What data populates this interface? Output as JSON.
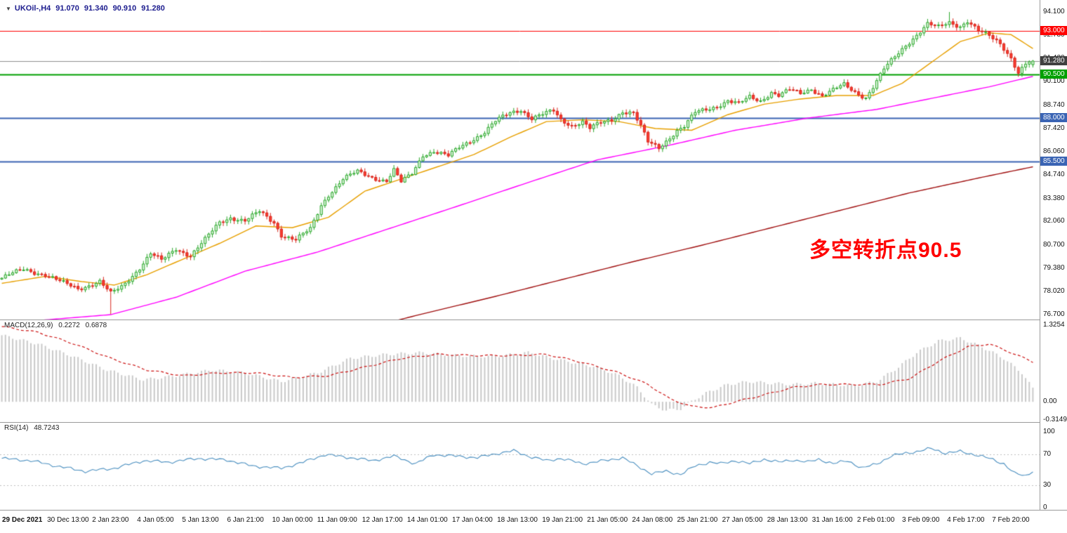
{
  "header": {
    "symbol": "UKOil-,H4",
    "open": "91.070",
    "high": "91.340",
    "low": "90.910",
    "close": "91.280"
  },
  "annotation": {
    "text": "多空转折点90.5",
    "color": "#ff0000"
  },
  "indicators": {
    "macd": {
      "label": "MACD(12,26,9)",
      "value_main": "0.2272",
      "value_signal": "0.6878"
    },
    "rsi": {
      "label": "RSI(14)",
      "value": "48.7243"
    }
  },
  "colors": {
    "up_fill": "#d9f2d9",
    "up_border": "#2aa82a",
    "down_fill": "#fa3b30",
    "down_border": "#d8281e",
    "macd_hist": "#c9c9c9",
    "macd_signal": "#cc1111",
    "rsi_line": "#4a8fc0",
    "annotation": "#ff0000",
    "axis_text": "#111111",
    "separator": "#9a9a9a",
    "symbol_text": "#1c1c8e"
  },
  "chart_data": [
    {
      "type": "candlestick",
      "title": "UKOil- H4 candlestick chart",
      "candle_count": 285,
      "ylim": [
        76.42,
        94.79
      ],
      "last_candle": {
        "open": 91.07,
        "high": 91.34,
        "low": 90.91,
        "close": 91.28
      },
      "y_axis": {
        "labels": [
          "94.100",
          "92.780",
          "91.420",
          "90.100",
          "88.740",
          "87.420",
          "86.060",
          "84.740",
          "83.380",
          "82.060",
          "80.700",
          "79.380",
          "78.020",
          "76.700"
        ]
      },
      "x_axis": {
        "labels": [
          "29 Dec 2021",
          "30 Dec 13:00",
          "2 Jan 23:00",
          "4 Jan 05:00",
          "5 Jan 13:00",
          "6 Jan 21:00",
          "10 Jan 00:00",
          "11 Jan 09:00",
          "12 Jan 17:00",
          "14 Jan 01:00",
          "17 Jan 04:00",
          "18 Jan 13:00",
          "19 Jan 21:00",
          "21 Jan 05:00",
          "24 Jan 08:00",
          "25 Jan 21:00",
          "27 Jan 05:00",
          "28 Jan 13:00",
          "31 Jan 16:00",
          "2 Feb 01:00",
          "3 Feb 09:00",
          "4 Feb 17:00",
          "7 Feb 20:00"
        ]
      },
      "horizontal_lines": [
        {
          "label": "93.000",
          "value": 93.0,
          "line_color": "#ff0000",
          "badge_color": "#ff0000",
          "width": 1
        },
        {
          "label": "91.280",
          "value": 91.28,
          "line_color": "#909090",
          "badge_color": "#404040",
          "width": 1,
          "current_price": true
        },
        {
          "label": "90.500",
          "value": 90.5,
          "line_color": "#00a000",
          "badge_color": "#00a000",
          "width": 2
        },
        {
          "label": "88.000",
          "value": 88.0,
          "line_color": "#3a64b4",
          "badge_color": "#3a64b4",
          "width": 2
        },
        {
          "label": "85.500",
          "value": 85.5,
          "line_color": "#3a64b4",
          "badge_color": "#3a64b4",
          "width": 2
        }
      ],
      "close_anchors": [
        [
          0,
          78.8
        ],
        [
          6,
          79.3
        ],
        [
          12,
          79.0
        ],
        [
          17,
          78.5
        ],
        [
          21,
          78.2
        ],
        [
          27,
          78.6
        ],
        [
          30,
          77.9
        ],
        [
          33,
          78.3
        ],
        [
          38,
          79.4
        ],
        [
          41,
          80.2
        ],
        [
          44,
          79.8
        ],
        [
          48,
          80.5
        ],
        [
          52,
          80.1
        ],
        [
          56,
          81.0
        ],
        [
          60,
          82.0
        ],
        [
          63,
          82.3
        ],
        [
          67,
          82.1
        ],
        [
          71,
          82.6
        ],
        [
          75,
          82.0
        ],
        [
          77,
          81.3
        ],
        [
          81,
          81.0
        ],
        [
          85,
          81.6
        ],
        [
          88,
          83.0
        ],
        [
          90,
          83.6
        ],
        [
          94,
          84.5
        ],
        [
          98,
          84.9
        ],
        [
          102,
          84.6
        ],
        [
          106,
          84.4
        ],
        [
          108,
          85.0
        ],
        [
          110,
          84.3
        ],
        [
          113,
          84.8
        ],
        [
          116,
          85.9
        ],
        [
          119,
          86.1
        ],
        [
          123,
          85.8
        ],
        [
          126,
          86.3
        ],
        [
          129,
          86.7
        ],
        [
          133,
          87.2
        ],
        [
          136,
          87.8
        ],
        [
          140,
          88.3
        ],
        [
          143,
          88.5
        ],
        [
          146,
          88.0
        ],
        [
          149,
          88.2
        ],
        [
          152,
          88.4
        ],
        [
          154,
          87.9
        ],
        [
          157,
          87.6
        ],
        [
          160,
          87.8
        ],
        [
          162,
          87.4
        ],
        [
          165,
          87.7
        ],
        [
          168,
          87.9
        ],
        [
          171,
          88.4
        ],
        [
          174,
          88.3
        ],
        [
          176,
          87.5
        ],
        [
          178,
          86.6
        ],
        [
          181,
          86.3
        ],
        [
          184,
          86.9
        ],
        [
          186,
          87.3
        ],
        [
          188,
          87.5
        ],
        [
          191,
          88.3
        ],
        [
          194,
          88.5
        ],
        [
          197,
          88.7
        ],
        [
          200,
          89.0
        ],
        [
          203,
          88.8
        ],
        [
          206,
          89.2
        ],
        [
          209,
          89.0
        ],
        [
          212,
          89.5
        ],
        [
          214,
          89.3
        ],
        [
          217,
          89.6
        ],
        [
          220,
          89.4
        ],
        [
          223,
          89.7
        ],
        [
          226,
          89.3
        ],
        [
          229,
          89.6
        ],
        [
          232,
          89.9
        ],
        [
          235,
          89.5
        ],
        [
          238,
          89.2
        ],
        [
          240,
          89.8
        ],
        [
          243,
          90.8
        ],
        [
          246,
          91.5
        ],
        [
          249,
          92.2
        ],
        [
          252,
          92.8
        ],
        [
          255,
          93.4
        ],
        [
          258,
          93.2
        ],
        [
          261,
          93.5
        ],
        [
          264,
          93.3
        ],
        [
          266,
          93.6
        ],
        [
          269,
          93.0
        ],
        [
          272,
          92.7
        ],
        [
          275,
          92.3
        ],
        [
          278,
          91.5
        ],
        [
          280,
          90.6
        ],
        [
          282,
          91.1
        ],
        [
          284,
          91.28
        ]
      ],
      "overrides": [
        {
          "i": 30,
          "low": 76.72
        },
        {
          "i": 261,
          "high": 94.1
        },
        {
          "i": 284,
          "open": 91.07,
          "high": 91.34,
          "low": 90.91,
          "close": 91.28
        }
      ],
      "moving_averages": [
        {
          "name": "fast-ma",
          "color": "#e8a000",
          "anchors": [
            [
              0,
              78.5
            ],
            [
              12,
              78.9
            ],
            [
              22,
              78.6
            ],
            [
              31,
              78.4
            ],
            [
              40,
              79.0
            ],
            [
              50,
              79.9
            ],
            [
              60,
              80.8
            ],
            [
              70,
              81.8
            ],
            [
              80,
              81.7
            ],
            [
              90,
              82.3
            ],
            [
              100,
              83.8
            ],
            [
              110,
              84.5
            ],
            [
              120,
              85.2
            ],
            [
              130,
              85.9
            ],
            [
              140,
              86.9
            ],
            [
              150,
              87.8
            ],
            [
              160,
              87.9
            ],
            [
              170,
              87.8
            ],
            [
              180,
              87.4
            ],
            [
              190,
              87.3
            ],
            [
              200,
              88.2
            ],
            [
              210,
              88.8
            ],
            [
              220,
              89.1
            ],
            [
              230,
              89.3
            ],
            [
              240,
              89.3
            ],
            [
              248,
              90.0
            ],
            [
              256,
              91.2
            ],
            [
              264,
              92.4
            ],
            [
              272,
              92.9
            ],
            [
              278,
              92.8
            ],
            [
              284,
              92.0
            ]
          ]
        },
        {
          "name": "mid-ma",
          "color": "#ff00ff",
          "anchors": [
            [
              0,
              76.2
            ],
            [
              30,
              76.7
            ],
            [
              48,
              77.7
            ],
            [
              67,
              79.2
            ],
            [
              87,
              80.3
            ],
            [
              106,
              81.6
            ],
            [
              125,
              82.9
            ],
            [
              145,
              84.3
            ],
            [
              164,
              85.6
            ],
            [
              183,
              86.4
            ],
            [
              202,
              87.3
            ],
            [
              222,
              88.0
            ],
            [
              241,
              88.5
            ],
            [
              260,
              89.3
            ],
            [
              272,
              89.8
            ],
            [
              284,
              90.4
            ]
          ]
        },
        {
          "name": "slow-ma",
          "color": "#a01010",
          "anchors": [
            [
              100,
              75.9
            ],
            [
              115,
              76.7
            ],
            [
              135,
              77.7
            ],
            [
              154,
              78.7
            ],
            [
              173,
              79.7
            ],
            [
              193,
              80.7
            ],
            [
              212,
              81.7
            ],
            [
              231,
              82.7
            ],
            [
              250,
              83.7
            ],
            [
              270,
              84.6
            ],
            [
              284,
              85.2
            ]
          ]
        }
      ]
    },
    {
      "type": "bar",
      "title": "MACD(12,26,9)",
      "ylim": [
        -0.35,
        1.41
      ],
      "axis_labels": [
        "1.3254",
        "0.00",
        "-0.3149"
      ],
      "histogram_anchors": [
        [
          0,
          1.15
        ],
        [
          10,
          1.0
        ],
        [
          19,
          0.8
        ],
        [
          29,
          0.55
        ],
        [
          39,
          0.38
        ],
        [
          48,
          0.45
        ],
        [
          58,
          0.55
        ],
        [
          67,
          0.5
        ],
        [
          77,
          0.35
        ],
        [
          87,
          0.5
        ],
        [
          96,
          0.75
        ],
        [
          106,
          0.82
        ],
        [
          116,
          0.85
        ],
        [
          125,
          0.8
        ],
        [
          135,
          0.78
        ],
        [
          145,
          0.85
        ],
        [
          154,
          0.72
        ],
        [
          164,
          0.6
        ],
        [
          170,
          0.45
        ],
        [
          175,
          0.25
        ],
        [
          179,
          -0.05
        ],
        [
          183,
          -0.15
        ],
        [
          187,
          -0.12
        ],
        [
          191,
          0.05
        ],
        [
          195,
          0.18
        ],
        [
          200,
          0.3
        ],
        [
          206,
          0.35
        ],
        [
          212,
          0.32
        ],
        [
          218,
          0.3
        ],
        [
          224,
          0.32
        ],
        [
          229,
          0.3
        ],
        [
          235,
          0.28
        ],
        [
          241,
          0.35
        ],
        [
          247,
          0.6
        ],
        [
          252,
          0.85
        ],
        [
          258,
          1.05
        ],
        [
          264,
          1.1
        ],
        [
          270,
          0.95
        ],
        [
          276,
          0.75
        ],
        [
          281,
          0.5
        ],
        [
          284,
          0.23
        ]
      ],
      "signal_anchors": [
        [
          0,
          1.3
        ],
        [
          10,
          1.2
        ],
        [
          20,
          1.0
        ],
        [
          30,
          0.75
        ],
        [
          40,
          0.55
        ],
        [
          50,
          0.45
        ],
        [
          60,
          0.5
        ],
        [
          70,
          0.5
        ],
        [
          80,
          0.42
        ],
        [
          90,
          0.45
        ],
        [
          100,
          0.6
        ],
        [
          110,
          0.75
        ],
        [
          120,
          0.82
        ],
        [
          130,
          0.8
        ],
        [
          140,
          0.8
        ],
        [
          150,
          0.82
        ],
        [
          160,
          0.68
        ],
        [
          170,
          0.5
        ],
        [
          178,
          0.3
        ],
        [
          184,
          0.05
        ],
        [
          190,
          -0.08
        ],
        [
          196,
          -0.1
        ],
        [
          202,
          0.0
        ],
        [
          210,
          0.12
        ],
        [
          218,
          0.25
        ],
        [
          226,
          0.3
        ],
        [
          234,
          0.3
        ],
        [
          242,
          0.3
        ],
        [
          250,
          0.4
        ],
        [
          258,
          0.7
        ],
        [
          266,
          0.95
        ],
        [
          272,
          1.0
        ],
        [
          278,
          0.85
        ],
        [
          284,
          0.69
        ]
      ]
    },
    {
      "type": "line",
      "title": "RSI(14)",
      "ylim": [
        -2.8,
        112
      ],
      "axis_labels": [
        "100",
        "70",
        "30",
        "0"
      ],
      "levels": [
        70,
        30
      ],
      "anchors": [
        [
          0,
          65
        ],
        [
          8,
          62
        ],
        [
          15,
          55
        ],
        [
          23,
          48
        ],
        [
          31,
          52
        ],
        [
          39,
          62
        ],
        [
          46,
          60
        ],
        [
          54,
          65
        ],
        [
          62,
          63
        ],
        [
          69,
          55
        ],
        [
          77,
          52
        ],
        [
          83,
          60
        ],
        [
          89,
          70
        ],
        [
          96,
          66
        ],
        [
          102,
          62
        ],
        [
          108,
          68
        ],
        [
          114,
          58
        ],
        [
          119,
          70
        ],
        [
          125,
          68
        ],
        [
          131,
          66
        ],
        [
          137,
          72
        ],
        [
          141,
          75
        ],
        [
          145,
          68
        ],
        [
          150,
          62
        ],
        [
          154,
          65
        ],
        [
          160,
          58
        ],
        [
          166,
          62
        ],
        [
          171,
          66
        ],
        [
          175,
          55
        ],
        [
          179,
          45
        ],
        [
          183,
          48
        ],
        [
          187,
          44
        ],
        [
          191,
          55
        ],
        [
          195,
          60
        ],
        [
          198,
          58
        ],
        [
          202,
          62
        ],
        [
          206,
          58
        ],
        [
          210,
          64
        ],
        [
          214,
          60
        ],
        [
          218,
          63
        ],
        [
          222,
          60
        ],
        [
          225,
          64
        ],
        [
          229,
          58
        ],
        [
          233,
          62
        ],
        [
          237,
          52
        ],
        [
          241,
          58
        ],
        [
          245,
          68
        ],
        [
          249,
          72
        ],
        [
          252,
          74
        ],
        [
          256,
          78
        ],
        [
          260,
          72
        ],
        [
          264,
          74
        ],
        [
          268,
          70
        ],
        [
          272,
          65
        ],
        [
          276,
          58
        ],
        [
          279,
          45
        ],
        [
          282,
          42
        ],
        [
          284,
          48.7
        ]
      ]
    }
  ]
}
